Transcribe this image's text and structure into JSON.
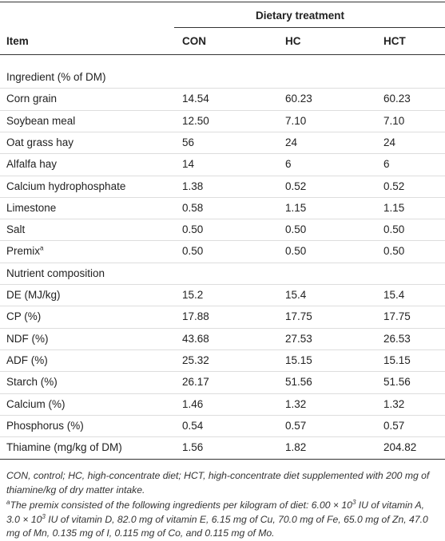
{
  "table": {
    "group_header": "Dietary treatment",
    "columns": [
      "Item",
      "CON",
      "HC",
      "HCT"
    ],
    "rows": [
      [
        "Ingredient (% of DM)"
      ],
      [
        "Corn grain",
        "14.54",
        "60.23",
        "60.23"
      ],
      [
        "Soybean meal",
        "12.50",
        "7.10",
        "7.10"
      ],
      [
        "Oat grass hay",
        "56",
        "24",
        "24"
      ],
      [
        "Alfalfa hay",
        "14",
        "6",
        "6"
      ],
      [
        "Calcium hydrophosphate",
        "1.38",
        "0.52",
        "0.52"
      ],
      [
        "Limestone",
        "0.58",
        "1.15",
        "1.15"
      ],
      [
        "Salt",
        "0.50",
        "0.50",
        "0.50"
      ],
      [
        "Premix",
        "0.50",
        "0.50",
        "0.50"
      ],
      [
        "Nutrient composition"
      ],
      [
        "DE (MJ/kg)",
        "15.2",
        "15.4",
        "15.4"
      ],
      [
        "CP (%)",
        "17.88",
        "17.75",
        "17.75"
      ],
      [
        "NDF (%)",
        "43.68",
        "27.53",
        "26.53"
      ],
      [
        "ADF (%)",
        "25.32",
        "15.15",
        "15.15"
      ],
      [
        "Starch (%)",
        "26.17",
        "51.56",
        "51.56"
      ],
      [
        "Calcium (%)",
        "1.46",
        "1.32",
        "1.32"
      ],
      [
        "Phosphorus (%)",
        "0.54",
        "0.57",
        "0.57"
      ],
      [
        "Thiamine (mg/kg of DM)",
        "1.56",
        "1.82",
        "204.82"
      ]
    ],
    "premix_row": 8,
    "premix_mark": "a"
  },
  "footnotes": [
    {
      "parts": [
        {
          "text": "CON, control; HC, high-concentrate diet; HCT, high-concentrate diet supplemented with 200 mg of thiamine/kg of dry matter intake."
        }
      ]
    },
    {
      "label": "a",
      "parts": [
        {
          "text": "The premix consisted of the following ingredients per kilogram of diet: 6.00 × 10"
        },
        {
          "sup": "3"
        },
        {
          "text": " IU of vitamin A, 3.0 × 10"
        },
        {
          "sup": "3"
        },
        {
          "text": " IU of vitamin D, 82.0 mg of vitamin E, 6.15 mg of Cu, 70.0 mg of Fe, 65.0 mg of Zn, 47.0 mg of Mn, 0.135 mg of I, 0.115 mg of Co, and 0.115 mg of Mo."
        }
      ]
    }
  ]
}
